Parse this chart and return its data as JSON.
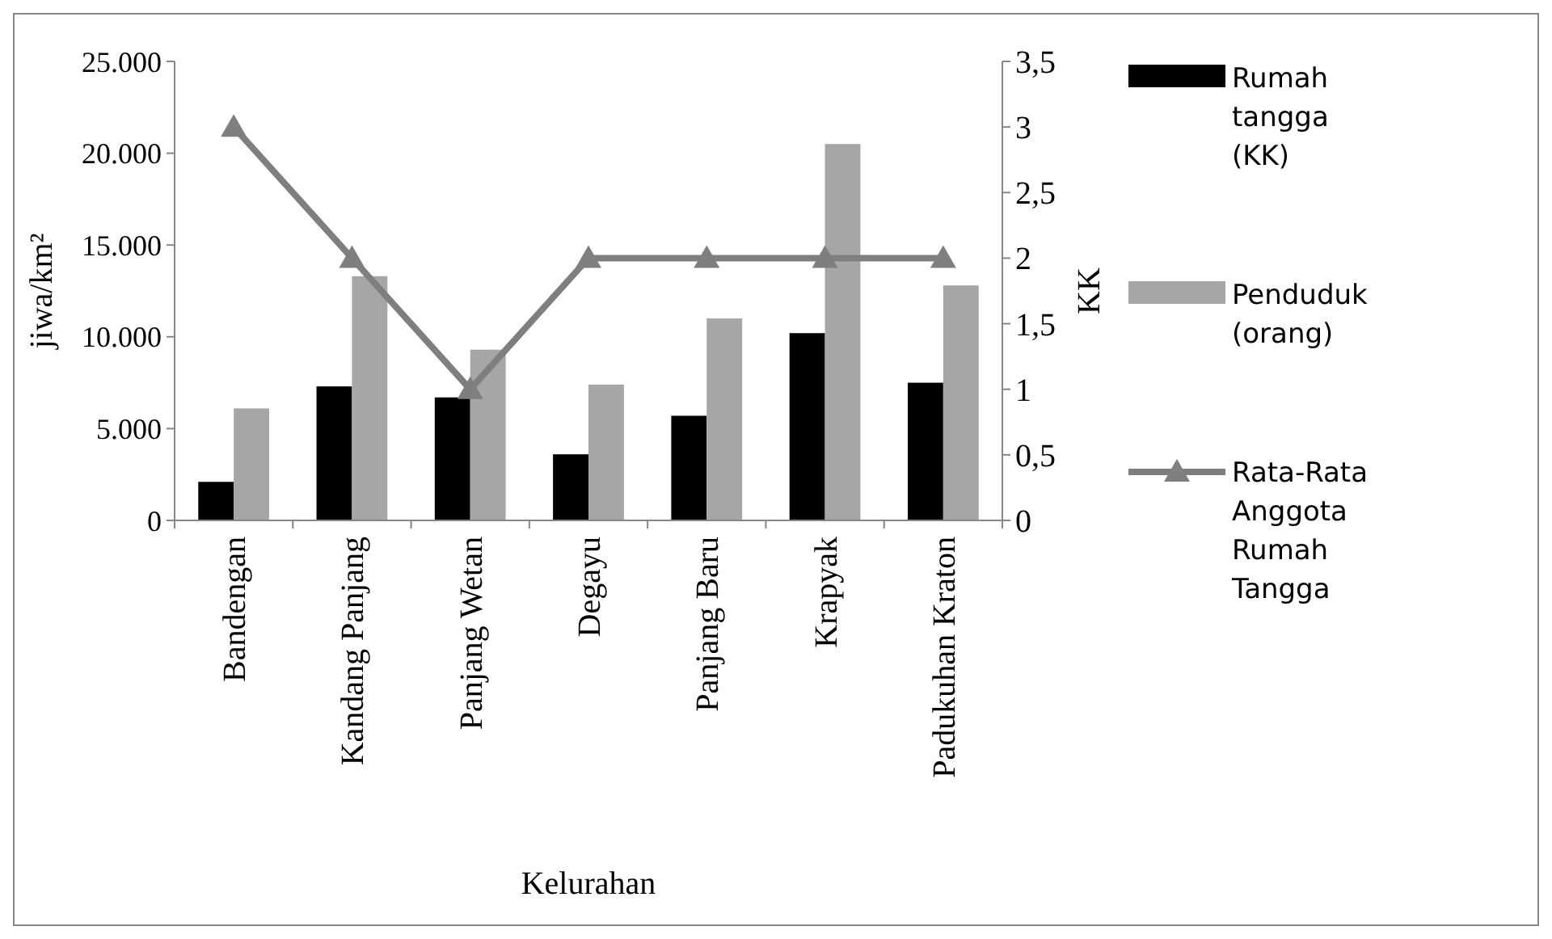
{
  "chart_data": {
    "type": "bar",
    "xlabel": "Kelurahan",
    "ylabel": "jiwa/km²",
    "y2label": "KK",
    "categories": [
      "Bandengan",
      "Kandang Panjang",
      "Panjang Wetan",
      "Degayu",
      "Panjang Baru",
      "Krapyak",
      "Padukuhan Kraton"
    ],
    "series": [
      {
        "name": "Rumah tangga (KK)",
        "color": "#000000",
        "values": [
          2100,
          7300,
          6700,
          3600,
          5700,
          10200,
          7500
        ]
      },
      {
        "name": "Penduduk (orang)",
        "color": "#a6a6a6",
        "values": [
          6100,
          13300,
          9300,
          7400,
          11000,
          20500,
          12800
        ]
      },
      {
        "name": "Rata-Rata Anggota Rumah Tangga",
        "type": "line",
        "axis": "y2",
        "color": "#7f7f7f",
        "marker": "triangle",
        "values": [
          3,
          2,
          1,
          2,
          2,
          2,
          2
        ]
      }
    ],
    "ylim": [
      0,
      25000
    ],
    "yticks": [
      {
        "value": 0,
        "label": "0"
      },
      {
        "value": 5000,
        "label": "5.000"
      },
      {
        "value": 10000,
        "label": "10.000"
      },
      {
        "value": 15000,
        "label": "15.000"
      },
      {
        "value": 20000,
        "label": "20.000"
      },
      {
        "value": 25000,
        "label": "25.000"
      }
    ],
    "y2lim": [
      0,
      3.5
    ],
    "y2ticks": [
      0,
      {
        "value": 0.5,
        "label": "0,5"
      },
      1,
      {
        "value": 1.5,
        "label": "1,5"
      },
      2,
      {
        "value": 2.5,
        "label": "2,5"
      },
      3,
      {
        "value": 3.5,
        "label": "3,5"
      }
    ],
    "legend": "right",
    "grid": false
  }
}
